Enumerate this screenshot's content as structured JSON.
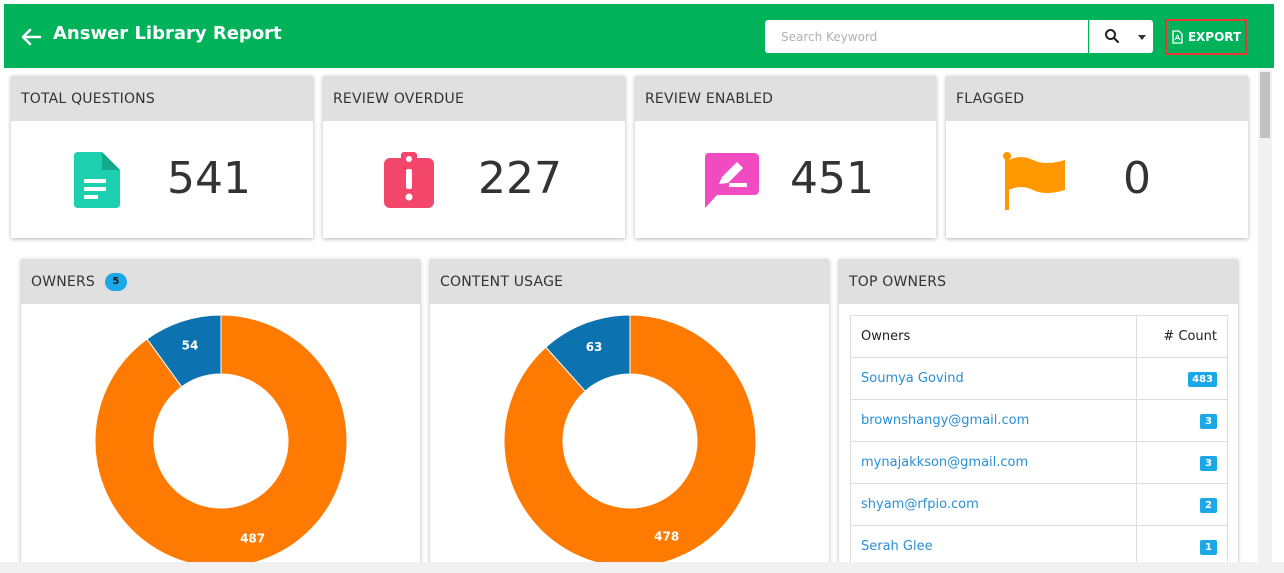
{
  "header": {
    "title": "Answer Library Report",
    "search_placeholder": "Search Keyword",
    "export_label": "EXPORT",
    "bg_color": "#00b25a"
  },
  "stats": [
    {
      "label": "TOTAL QUESTIONS",
      "value": "541",
      "icon": "document-icon",
      "color": "#1ccfae"
    },
    {
      "label": "REVIEW OVERDUE",
      "value": "227",
      "icon": "clipboard-alert-icon",
      "color": "#f2476a"
    },
    {
      "label": "REVIEW ENABLED",
      "value": "451",
      "icon": "comment-edit-icon",
      "color": "#f04bc0"
    },
    {
      "label": "FLAGGED",
      "value": "0",
      "icon": "flag-icon",
      "color": "#ff9800"
    }
  ],
  "owners_panel": {
    "title": "OWNERS",
    "badge": "5",
    "chart_data": {
      "type": "pie",
      "values": [
        487,
        54
      ],
      "labels": [
        "487",
        "54"
      ],
      "colors": [
        "#ff7a00",
        "#0c72b0"
      ]
    }
  },
  "content_usage_panel": {
    "title": "CONTENT USAGE",
    "chart_data": {
      "type": "pie",
      "values": [
        478,
        63
      ],
      "labels": [
        "478",
        "63"
      ],
      "colors": [
        "#ff7a00",
        "#0c72b0"
      ]
    }
  },
  "top_owners": {
    "title": "TOP OWNERS",
    "col_owner": "Owners",
    "col_count": "# Count",
    "rows": [
      {
        "owner": "Soumya Govind",
        "count": "483"
      },
      {
        "owner": "brownshangy@gmail.com",
        "count": "3"
      },
      {
        "owner": "mynajakkson@gmail.com",
        "count": "3"
      },
      {
        "owner": "shyam@rfpio.com",
        "count": "2"
      },
      {
        "owner": "Serah Glee",
        "count": "1"
      }
    ]
  }
}
